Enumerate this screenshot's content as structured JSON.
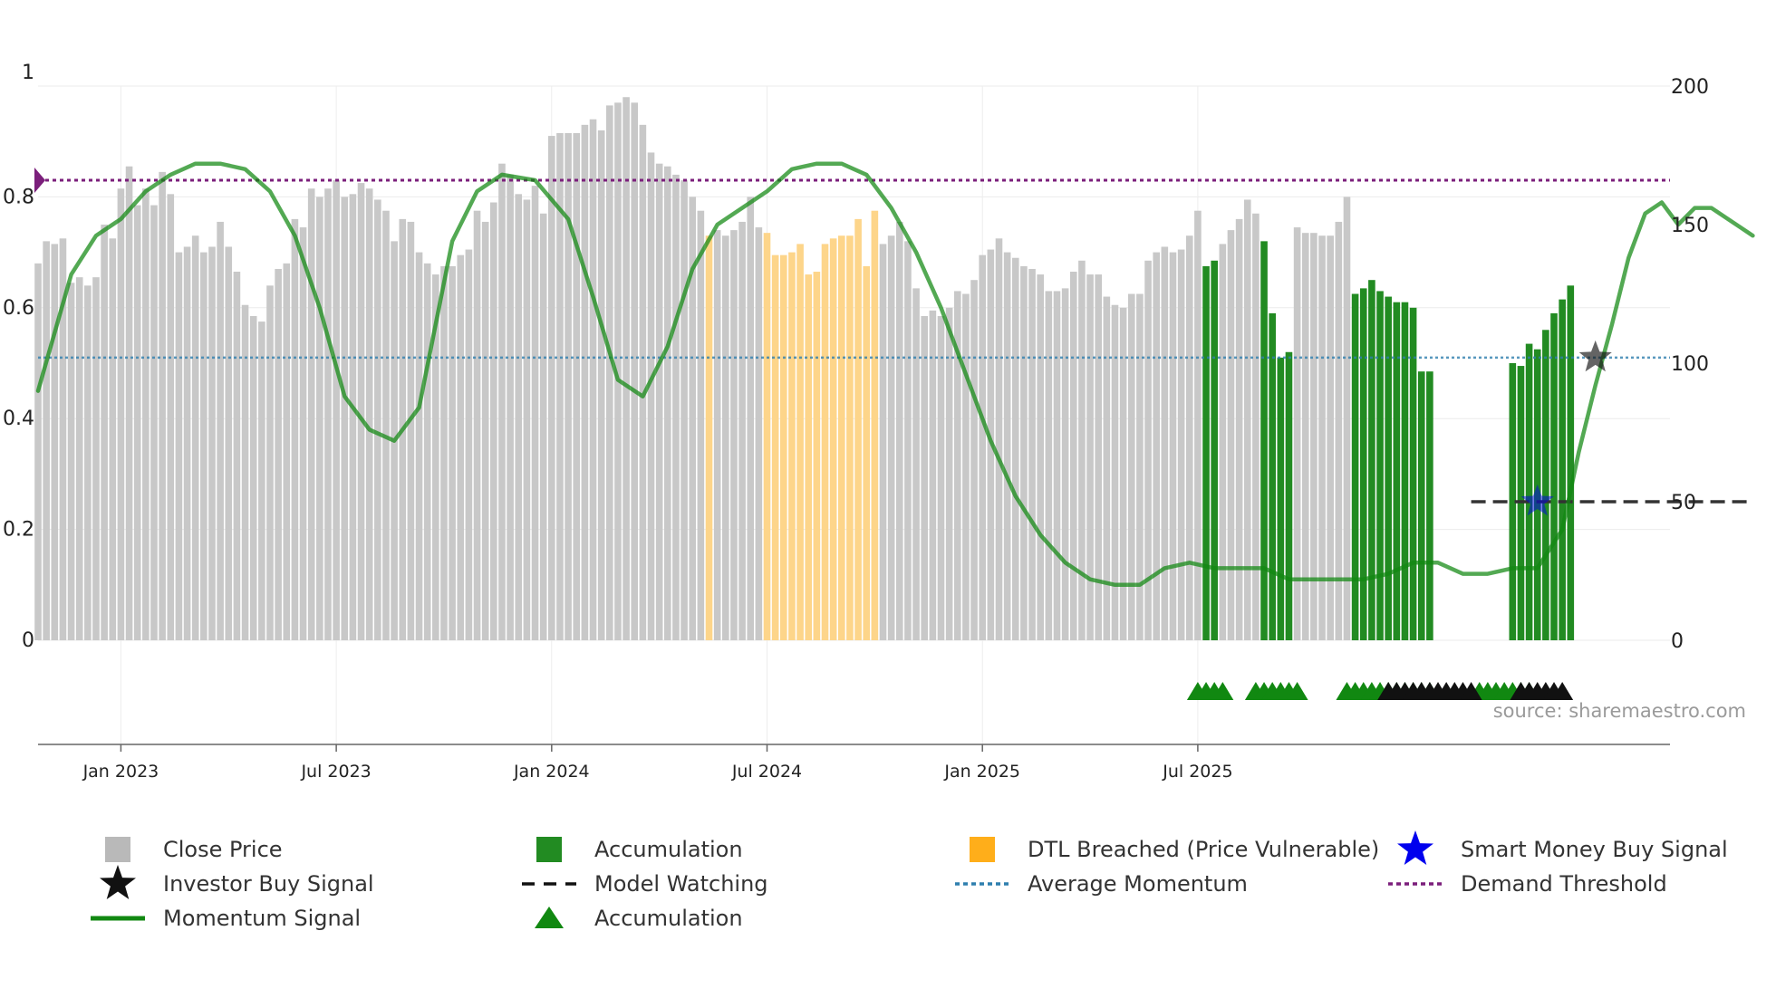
{
  "chart_data": {
    "type": "bar",
    "title": "",
    "xlabel": "",
    "ylabel_left": "",
    "ylabel_right": "",
    "left_axis": {
      "ylim": [
        0,
        1
      ],
      "ticks": [
        "0",
        "0.2",
        "0.4",
        "0.6",
        "0.8",
        "1"
      ]
    },
    "right_axis": {
      "ylim": [
        0,
        200
      ],
      "ticks": [
        "0",
        "50",
        "100",
        "150",
        "200"
      ]
    },
    "x_ticks": [
      "Jan 2023",
      "Jul 2023",
      "Jan 2024",
      "Jul 2024",
      "Jan 2025",
      "Jul 2025"
    ],
    "x_range_weeks": [
      -10,
      187
    ],
    "close_price_weekly": [
      136,
      144,
      143,
      145,
      129,
      131,
      128,
      131,
      150,
      145,
      163,
      171,
      157,
      163,
      157,
      169,
      161,
      140,
      142,
      146,
      140,
      142,
      151,
      142,
      133,
      121,
      117,
      115,
      128,
      134,
      136,
      152,
      149,
      163,
      160,
      163,
      166,
      160,
      161,
      165,
      163,
      159,
      155,
      144,
      152,
      151,
      140,
      136,
      132,
      135,
      135,
      139,
      141,
      155,
      151,
      158,
      172,
      168,
      161,
      159,
      164,
      154,
      182,
      183,
      183,
      183,
      186,
      188,
      184,
      193,
      194,
      196,
      194,
      186,
      176,
      172,
      171,
      168,
      166,
      160,
      155,
      146,
      148,
      146,
      148,
      151,
      160,
      149,
      147,
      139,
      139,
      140,
      143,
      132,
      133,
      143,
      145,
      146,
      146,
      152,
      135,
      155,
      143,
      146,
      151,
      144,
      127,
      117,
      119,
      117,
      120,
      126,
      125,
      130,
      139,
      141,
      145,
      140,
      138,
      135,
      134,
      132,
      126,
      126,
      127,
      133,
      137,
      132,
      132,
      124,
      121,
      120,
      125,
      125,
      137,
      140,
      142,
      140,
      141,
      146,
      155,
      157,
      143,
      143,
      148,
      152,
      159,
      154,
      143,
      143,
      151,
      150,
      149,
      147,
      147,
      146,
      146,
      151,
      160,
      148,
      143,
      144
    ],
    "accumulation_weeks": [
      131,
      132,
      138,
      139,
      140,
      141,
      149,
      150,
      151,
      152,
      153,
      154,
      155,
      156,
      157,
      158,
      168,
      169,
      170,
      171,
      172,
      173,
      174,
      175
    ],
    "accumulation_price_values": [
      135,
      137,
      144,
      118,
      102,
      104,
      125,
      127,
      130,
      126,
      124,
      122,
      122,
      120,
      97,
      97,
      100,
      99,
      107,
      105,
      112,
      118,
      123,
      128
    ],
    "dtl_breached_weeks": [
      71,
      78,
      79,
      80,
      81,
      82,
      83,
      84,
      85,
      86,
      87,
      88,
      89,
      90,
      91
    ],
    "momentum_signal": {
      "x": [
        -10,
        -6,
        -3,
        0,
        3,
        6,
        9,
        12,
        15,
        18,
        21,
        24,
        27,
        30,
        33,
        36,
        38,
        40,
        43,
        46,
        50,
        54,
        57,
        60,
        63,
        66,
        69,
        72,
        75,
        78,
        81,
        84,
        87,
        90,
        93,
        96,
        99,
        102,
        105,
        108,
        111,
        114,
        117,
        120,
        123,
        126,
        129,
        132,
        135,
        138,
        141,
        144,
        147,
        150,
        153,
        156,
        159,
        162,
        165,
        168,
        171,
        174,
        176,
        178,
        180,
        182,
        184,
        186,
        188,
        190,
        192,
        194,
        196,
        197
      ],
      "y": [
        0.45,
        0.66,
        0.73,
        0.76,
        0.81,
        0.84,
        0.86,
        0.86,
        0.85,
        0.81,
        0.73,
        0.6,
        0.44,
        0.38,
        0.36,
        0.42,
        0.57,
        0.72,
        0.81,
        0.84,
        0.83,
        0.76,
        0.62,
        0.47,
        0.44,
        0.53,
        0.67,
        0.75,
        0.78,
        0.81,
        0.85,
        0.86,
        0.86,
        0.84,
        0.78,
        0.7,
        0.6,
        0.48,
        0.36,
        0.26,
        0.19,
        0.14,
        0.11,
        0.1,
        0.1,
        0.13,
        0.14,
        0.13,
        0.13,
        0.13,
        0.11,
        0.11,
        0.11,
        0.11,
        0.12,
        0.14,
        0.14,
        0.12,
        0.12,
        0.13,
        0.13,
        0.2,
        0.34,
        0.46,
        0.57,
        0.69,
        0.77,
        0.79,
        0.75,
        0.78,
        0.78,
        0.76,
        0.74,
        0.73
      ]
    },
    "average_momentum": 0.51,
    "demand_threshold": 0.83,
    "model_watching": {
      "level": 50,
      "from_week": 163,
      "to_week": 197
    },
    "investor_buy_signal": {
      "week": 178,
      "value": 0.51
    },
    "smart_money_buy_signal": {
      "week": 171,
      "value": 0.25
    },
    "accumulation_markers": {
      "green_weeks": [
        130,
        131,
        132,
        133,
        137,
        138,
        139,
        140,
        141,
        142,
        148,
        149,
        150,
        151,
        152,
        153,
        154,
        155,
        156,
        157,
        158,
        164,
        165,
        166,
        167,
        168,
        169,
        170
      ],
      "black_weeks": [
        153,
        154,
        155,
        156,
        157,
        158,
        159,
        160,
        161,
        162,
        163,
        169,
        170,
        171,
        172,
        173,
        174
      ]
    },
    "source_note": "source: sharemaestro.com",
    "legend": [
      {
        "key": "close",
        "label": "Close Price"
      },
      {
        "key": "accum_bar",
        "label": "Accumulation"
      },
      {
        "key": "dtl",
        "label": "DTL Breached (Price Vulnerable)"
      },
      {
        "key": "smart_money",
        "label": "Smart Money Buy Signal"
      },
      {
        "key": "investor",
        "label": "Investor Buy Signal"
      },
      {
        "key": "watching",
        "label": "Model Watching"
      },
      {
        "key": "avg_momentum",
        "label": "Average Momentum"
      },
      {
        "key": "demand",
        "label": "Demand Threshold"
      },
      {
        "key": "momentum",
        "label": "Momentum Signal"
      },
      {
        "key": "accum_marker",
        "label": "Accumulation"
      }
    ],
    "colors": {
      "close": "#c8c8c8",
      "accumulation": "#228b22",
      "dtl": "#fdd58a",
      "dtl_legend": "#ffae1a",
      "momentum": "#118811",
      "average": "#2f7fae",
      "demand": "#7b1f7b",
      "smart_money": "#0000ee",
      "investor": "#111111"
    }
  }
}
